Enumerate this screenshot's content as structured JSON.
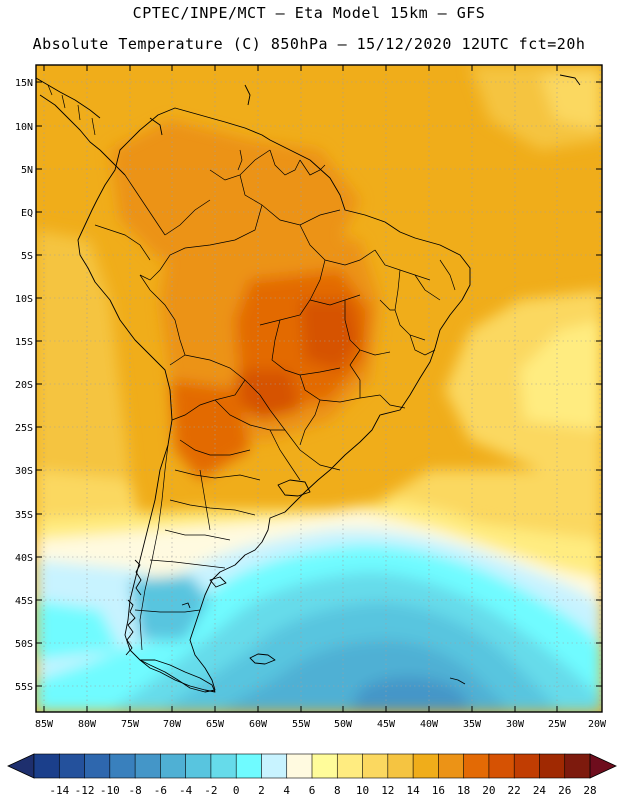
{
  "title": {
    "line1": "CPTEC/INPE/MCT –  Eta Model 15km – GFS",
    "line2": "Absolute Temperature (C) 850hPa – 15/12/2020 12UTC fct=20h"
  },
  "axes": {
    "lat_labels": [
      "15N",
      "10N",
      "5N",
      "EQ",
      "5S",
      "10S",
      "15S",
      "20S",
      "25S",
      "30S",
      "35S",
      "40S",
      "45S",
      "50S",
      "55S"
    ],
    "lon_labels": [
      "85W",
      "80W",
      "75W",
      "70W",
      "65W",
      "60W",
      "55W",
      "50W",
      "45W",
      "40W",
      "35W",
      "30W",
      "25W",
      "20W"
    ]
  },
  "colorbar": {
    "ticks": [
      "-14",
      "-12",
      "-10",
      "-8",
      "-6",
      "-4",
      "-2",
      "0",
      "2",
      "4",
      "6",
      "8",
      "10",
      "12",
      "14",
      "16",
      "18",
      "20",
      "22",
      "24",
      "26",
      "28"
    ],
    "colors": [
      "#1b3f8b",
      "#24519c",
      "#2e67ae",
      "#3980bd",
      "#4496c8",
      "#4fb0d4",
      "#58c5df",
      "#66dbea",
      "#6ffbff",
      "#c8f3ff",
      "#fffae0",
      "#fffc9a",
      "#ffec80",
      "#fbd860",
      "#f5c441",
      "#f0ad1a",
      "#ec9316",
      "#e36a05",
      "#d65203",
      "#c13d02",
      "#a02902",
      "#7d1a0d"
    ],
    "min_color": "#1e2f6e",
    "max_color": "#6e0d1d"
  }
}
